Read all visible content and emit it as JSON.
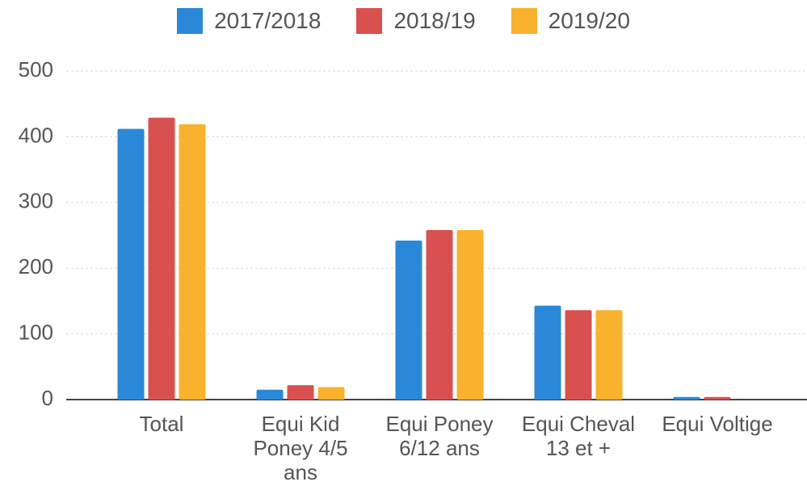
{
  "chart_data": {
    "type": "bar",
    "categories": [
      "Total",
      "Equi Kid Poney 4/5 ans",
      "Equi Poney 6/12 ans",
      "Equi Cheval 13 et +",
      "Equi Voltige"
    ],
    "series": [
      {
        "name": "2017/2018",
        "color": "#2b88d8",
        "values": [
          412,
          15,
          242,
          143,
          4
        ]
      },
      {
        "name": "2018/19",
        "color": "#d95050",
        "values": [
          429,
          22,
          258,
          136,
          4
        ]
      },
      {
        "name": "2019/20",
        "color": "#f8b22e",
        "values": [
          419,
          19,
          258,
          136,
          0
        ]
      }
    ],
    "ylim": [
      0,
      500
    ],
    "yticks": [
      0,
      100,
      200,
      300,
      400,
      500
    ],
    "grid": true,
    "legend": "top"
  }
}
